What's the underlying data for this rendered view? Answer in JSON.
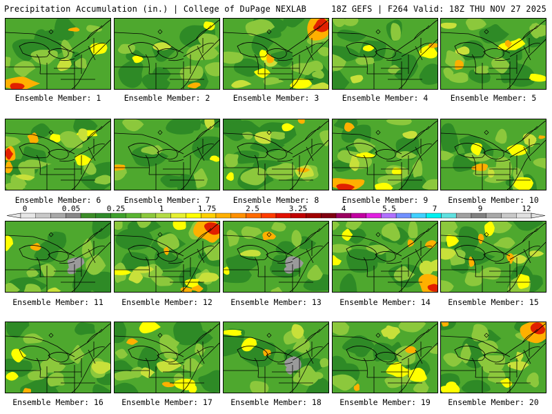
{
  "header": {
    "left_title": "Precipitation Accumulation (in.) | College of DuPage NEXLAB",
    "right_title": "18Z GEFS | F264 Valid: 18Z THU NOV 27 2025"
  },
  "colorbar": {
    "tick_labels": [
      "0",
      "0.05",
      "0.25",
      "1",
      "1.75",
      "2.5",
      "3.25",
      "4",
      "5.5",
      "7",
      "9",
      "12"
    ],
    "colors": [
      "#e6e6e6",
      "#c8c8c8",
      "#a8a8a8",
      "#888888",
      "#3c8c28",
      "#2f8a2a",
      "#3fa02c",
      "#5ab432",
      "#8cc83c",
      "#b4dc46",
      "#e6f032",
      "#ffff00",
      "#ffd000",
      "#ffb000",
      "#ff9000",
      "#ff6a00",
      "#ff3c00",
      "#e01000",
      "#c00000",
      "#a00000",
      "#800010",
      "#9a0060",
      "#c000a0",
      "#e020e0",
      "#b070ff",
      "#7090ff",
      "#40d0ff",
      "#00f0f0",
      "#60e0e0",
      "#a0a0a0",
      "#808080",
      "#a8a8a8",
      "#c8c8c8",
      "#e0e0e0"
    ]
  },
  "map_colors": {
    "dark_green": "#2e8a26",
    "green": "#4ea82e",
    "light_green": "#8cc83c",
    "yellow_green": "#c8e03a",
    "yellow": "#ffff00",
    "orange": "#ffb000",
    "red": "#e02000",
    "gray": "#9a9a9a"
  },
  "members": [
    {
      "label": "Ensemble Member: 1",
      "wet": 0.25,
      "hot": "bottom-left"
    },
    {
      "label": "Ensemble Member: 2",
      "wet": 0.3,
      "hot": "none"
    },
    {
      "label": "Ensemble Member: 3",
      "wet": 0.8,
      "hot": "top-right"
    },
    {
      "label": "Ensemble Member: 4",
      "wet": 0.3,
      "hot": "none"
    },
    {
      "label": "Ensemble Member: 5",
      "wet": 0.55,
      "hot": "none"
    },
    {
      "label": "Ensemble Member: 6",
      "wet": 0.55,
      "hot": "left"
    },
    {
      "label": "Ensemble Member: 7",
      "wet": 0.25,
      "hot": "none"
    },
    {
      "label": "Ensemble Member: 8",
      "wet": 0.45,
      "hot": "none"
    },
    {
      "label": "Ensemble Member: 9",
      "wet": 0.6,
      "hot": "bottom-left"
    },
    {
      "label": "Ensemble Member: 10",
      "wet": 0.7,
      "hot": "none"
    },
    {
      "label": "Ensemble Member: 11",
      "wet": 0.2,
      "hot": "gray"
    },
    {
      "label": "Ensemble Member: 12",
      "wet": 0.7,
      "hot": "top-right"
    },
    {
      "label": "Ensemble Member: 13",
      "wet": 0.2,
      "hot": "gray"
    },
    {
      "label": "Ensemble Member: 14",
      "wet": 0.4,
      "hot": "bottom-right"
    },
    {
      "label": "Ensemble Member: 15",
      "wet": 0.65,
      "hot": "none"
    },
    {
      "label": "Ensemble Member: 16",
      "wet": 0.3,
      "hot": "none"
    },
    {
      "label": "Ensemble Member: 17",
      "wet": 0.5,
      "hot": "none"
    },
    {
      "label": "Ensemble Member: 18",
      "wet": 0.3,
      "hot": "gray"
    },
    {
      "label": "Ensemble Member: 19",
      "wet": 0.45,
      "hot": "none"
    },
    {
      "label": "Ensemble Member: 20",
      "wet": 0.6,
      "hot": "top-right"
    }
  ]
}
